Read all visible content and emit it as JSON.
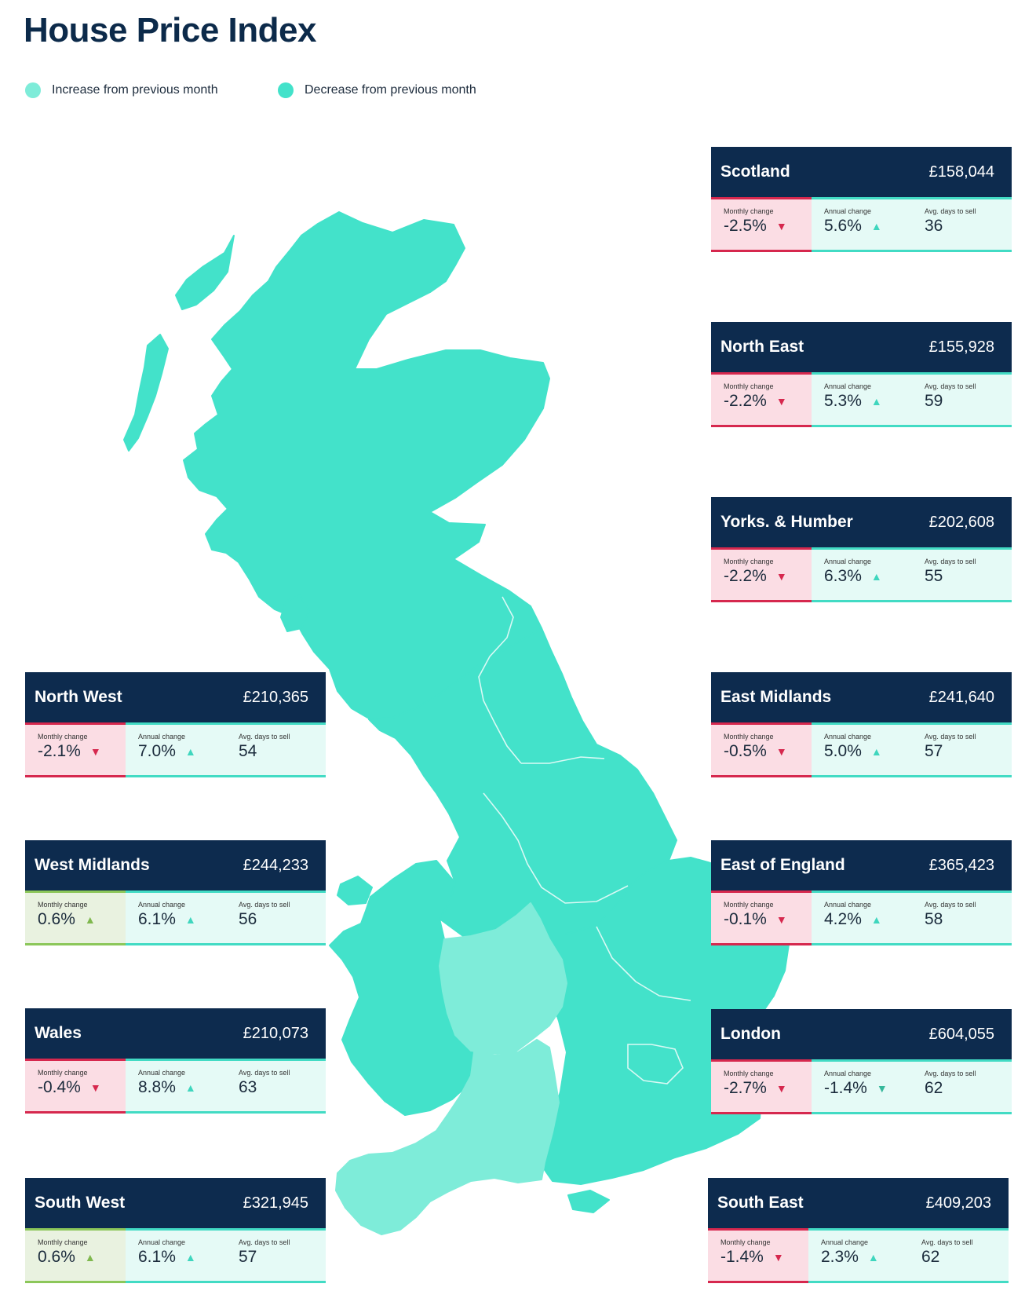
{
  "title": "House Price Index",
  "legend": {
    "increase": {
      "label": "Increase from previous month",
      "color": "#7eecd9"
    },
    "decrease": {
      "label": "Decrease from previous month",
      "color": "#43e2ca"
    }
  },
  "labels": {
    "monthly": "Monthly change",
    "annual": "Annual change",
    "days": "Avg. days to sell"
  },
  "regions": [
    {
      "name": "Scotland",
      "price": "£158,044",
      "monthly": "-2.5%",
      "monthly_dir": "down",
      "annual": "5.6%",
      "annual_dir": "up",
      "days": "36"
    },
    {
      "name": "North East",
      "price": "£155,928",
      "monthly": "-2.2%",
      "monthly_dir": "down",
      "annual": "5.3%",
      "annual_dir": "up",
      "days": "59"
    },
    {
      "name": "Yorks. & Humber",
      "price": "£202,608",
      "monthly": "-2.2%",
      "monthly_dir": "down",
      "annual": "6.3%",
      "annual_dir": "up",
      "days": "55"
    },
    {
      "name": "East Midlands",
      "price": "£241,640",
      "monthly": "-0.5%",
      "monthly_dir": "down",
      "annual": "5.0%",
      "annual_dir": "up",
      "days": "57"
    },
    {
      "name": "East of England",
      "price": "£365,423",
      "monthly": "-0.1%",
      "monthly_dir": "down",
      "annual": "4.2%",
      "annual_dir": "up",
      "days": "58"
    },
    {
      "name": "London",
      "price": "£604,055",
      "monthly": "-2.7%",
      "monthly_dir": "down",
      "annual": "-1.4%",
      "annual_dir": "down",
      "days": "62"
    },
    {
      "name": "South East",
      "price": "£409,203",
      "monthly": "-1.4%",
      "monthly_dir": "down",
      "annual": "2.3%",
      "annual_dir": "up",
      "days": "62"
    },
    {
      "name": "North West",
      "price": "£210,365",
      "monthly": "-2.1%",
      "monthly_dir": "down",
      "annual": "7.0%",
      "annual_dir": "up",
      "days": "54"
    },
    {
      "name": "West Midlands",
      "price": "£244,233",
      "monthly": "0.6%",
      "monthly_dir": "up",
      "annual": "6.1%",
      "annual_dir": "up",
      "days": "56"
    },
    {
      "name": "Wales",
      "price": "£210,073",
      "monthly": "-0.4%",
      "monthly_dir": "down",
      "annual": "8.8%",
      "annual_dir": "up",
      "days": "63"
    },
    {
      "name": "South West",
      "price": "£321,945",
      "monthly": "0.6%",
      "monthly_dir": "up",
      "annual": "6.1%",
      "annual_dir": "up",
      "days": "57"
    }
  ]
}
